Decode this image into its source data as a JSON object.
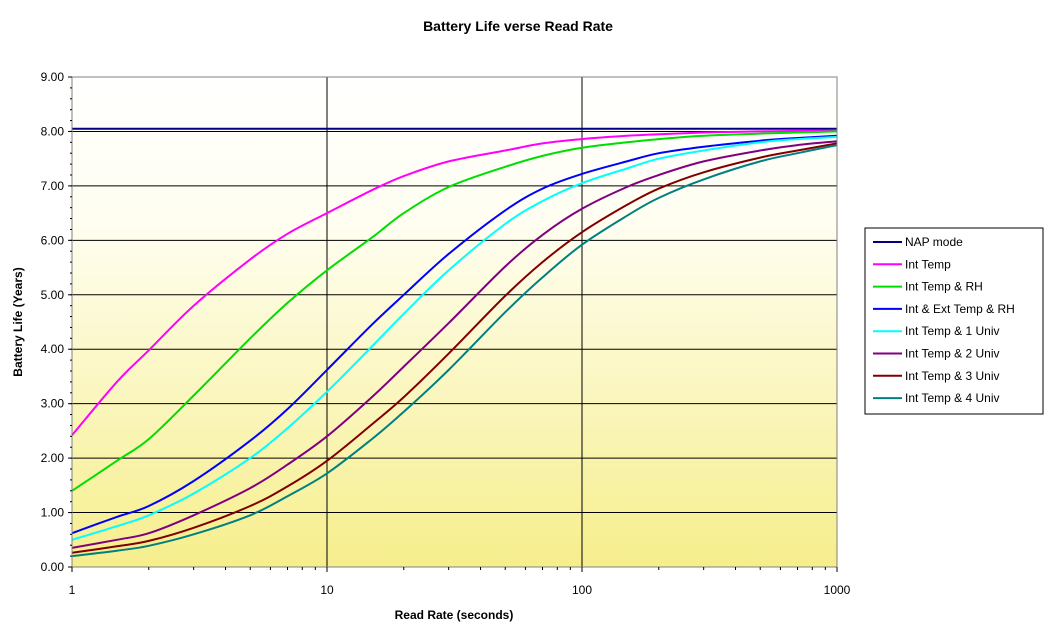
{
  "chart_data": {
    "type": "line",
    "title": "Battery Life verse Read Rate",
    "xlabel": "Read Rate (seconds)",
    "ylabel": "Battery Life (Years)",
    "xscale": "log",
    "xlim": [
      1,
      1000
    ],
    "ylim": [
      0,
      9
    ],
    "x_ticks": [
      1,
      10,
      100,
      1000
    ],
    "x_tick_labels": [
      "1",
      "10",
      "100",
      "1000"
    ],
    "y_ticks": [
      0,
      1,
      2,
      3,
      4,
      5,
      6,
      7,
      8,
      9
    ],
    "y_tick_labels": [
      "0.00",
      "1.00",
      "2.00",
      "3.00",
      "4.00",
      "5.00",
      "6.00",
      "7.00",
      "8.00",
      "9.00"
    ],
    "grid": true,
    "legend_position": "right",
    "x": [
      1,
      1.5,
      2,
      3,
      5,
      7,
      10,
      15,
      20,
      30,
      50,
      70,
      100,
      150,
      200,
      300,
      500,
      700,
      1000
    ],
    "series": [
      {
        "name": "NAP mode",
        "color": "#000080",
        "values": [
          8.05,
          8.05,
          8.05,
          8.05,
          8.05,
          8.05,
          8.05,
          8.05,
          8.05,
          8.05,
          8.05,
          8.05,
          8.05,
          8.05,
          8.05,
          8.05,
          8.05,
          8.05,
          8.05
        ]
      },
      {
        "name": "Int Temp",
        "color": "#ff00ff",
        "values": [
          2.42,
          3.4,
          3.98,
          4.8,
          5.65,
          6.12,
          6.5,
          6.92,
          7.18,
          7.45,
          7.65,
          7.78,
          7.86,
          7.92,
          7.95,
          7.98,
          8.0,
          8.01,
          8.02
        ]
      },
      {
        "name": "Int Temp & RH",
        "color": "#00dd00",
        "values": [
          1.4,
          1.95,
          2.35,
          3.15,
          4.2,
          4.85,
          5.45,
          6.05,
          6.5,
          6.98,
          7.35,
          7.55,
          7.7,
          7.8,
          7.86,
          7.92,
          7.96,
          7.98,
          8.0
        ]
      },
      {
        "name": "Int & Ext Temp & RH",
        "color": "#0000ff",
        "values": [
          0.62,
          0.92,
          1.12,
          1.58,
          2.32,
          2.9,
          3.62,
          4.45,
          5.0,
          5.75,
          6.55,
          6.95,
          7.22,
          7.45,
          7.6,
          7.72,
          7.83,
          7.88,
          7.92
        ]
      },
      {
        "name": "Int Temp & 1 Univ",
        "color": "#00ffff",
        "values": [
          0.5,
          0.75,
          0.95,
          1.35,
          2.0,
          2.55,
          3.22,
          4.05,
          4.65,
          5.45,
          6.3,
          6.72,
          7.05,
          7.32,
          7.5,
          7.65,
          7.8,
          7.86,
          7.9
        ]
      },
      {
        "name": "Int Temp & 2 Univ",
        "color": "#800080",
        "values": [
          0.35,
          0.5,
          0.62,
          0.95,
          1.45,
          1.88,
          2.4,
          3.12,
          3.68,
          4.48,
          5.52,
          6.1,
          6.58,
          6.98,
          7.2,
          7.45,
          7.65,
          7.75,
          7.82
        ]
      },
      {
        "name": "Int Temp & 3 Univ",
        "color": "#800000",
        "values": [
          0.26,
          0.38,
          0.48,
          0.72,
          1.12,
          1.48,
          1.95,
          2.62,
          3.12,
          3.92,
          4.98,
          5.6,
          6.15,
          6.65,
          6.95,
          7.25,
          7.52,
          7.65,
          7.78
        ]
      },
      {
        "name": "Int Temp & 4 Univ",
        "color": "#008080",
        "values": [
          0.2,
          0.3,
          0.39,
          0.6,
          0.95,
          1.3,
          1.72,
          2.35,
          2.85,
          3.62,
          4.68,
          5.32,
          5.92,
          6.45,
          6.78,
          7.12,
          7.45,
          7.6,
          7.75
        ]
      }
    ]
  }
}
